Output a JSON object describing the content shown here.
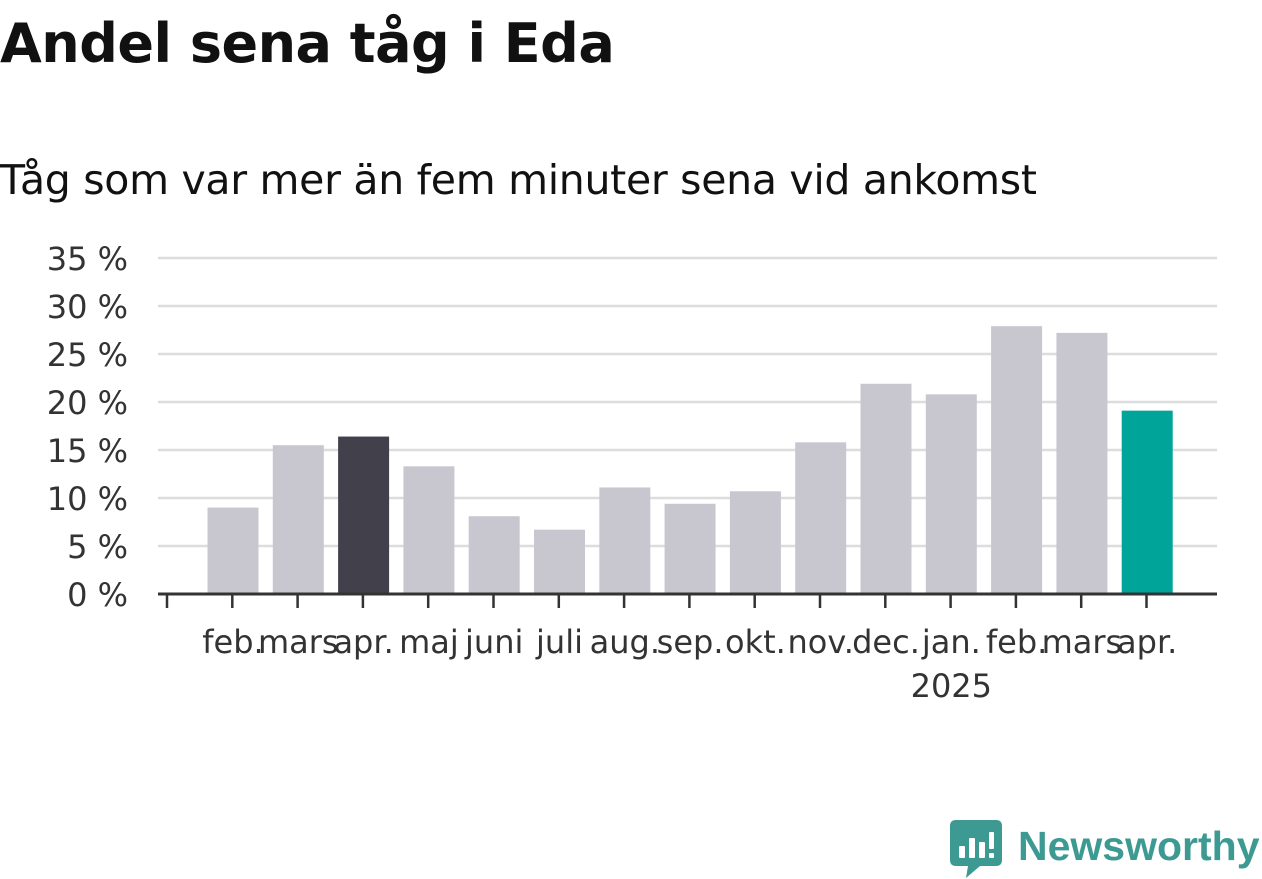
{
  "header": {
    "title": "Andel sena tåg i Eda",
    "subtitle": "Tåg som var mer än fem minuter sena vid ankomst"
  },
  "chart_data": {
    "type": "bar",
    "title": "Andel sena tåg i Eda",
    "subtitle": "Tåg som var mer än fem minuter sena vid ankomst",
    "xlabel": "",
    "ylabel": "",
    "categories": [
      "feb.",
      "mars",
      "apr.",
      "maj",
      "juni",
      "juli",
      "aug.",
      "sep.",
      "okt.",
      "nov.",
      "dec.",
      "jan.",
      "feb.",
      "mars",
      "apr."
    ],
    "year_labels": [
      {
        "category_index": 11,
        "label": "2025"
      }
    ],
    "series": [
      {
        "values": [
          9.0,
          15.5,
          16.4,
          13.3,
          8.1,
          6.7,
          11.1,
          9.4,
          10.7,
          15.8,
          21.9,
          20.8,
          27.9,
          27.2,
          19.1
        ]
      }
    ],
    "ylim": [
      0,
      35
    ],
    "yticks": [
      0,
      5,
      10,
      15,
      20,
      25,
      30,
      35
    ],
    "ytick_labels": [
      "0 %",
      "5 %",
      "10 %",
      "15 %",
      "20 %",
      "25 %",
      "30 %",
      "35 %"
    ],
    "grid": true,
    "legend": "none",
    "colors": {
      "default": "#c8c7d0",
      "highlight_previous_year": "#42404b",
      "highlight_current": "#00a499",
      "grid": "#dddddd",
      "axis": "#333333",
      "text": "#333333"
    },
    "highlights": [
      {
        "index": 2,
        "color": "#42404b"
      },
      {
        "index": 14,
        "color": "#00a499"
      }
    ]
  },
  "brand": {
    "name": "Newsworthy",
    "logo_icon": "newsworthy-chart-bubble-icon",
    "color": "#3d9a93"
  }
}
